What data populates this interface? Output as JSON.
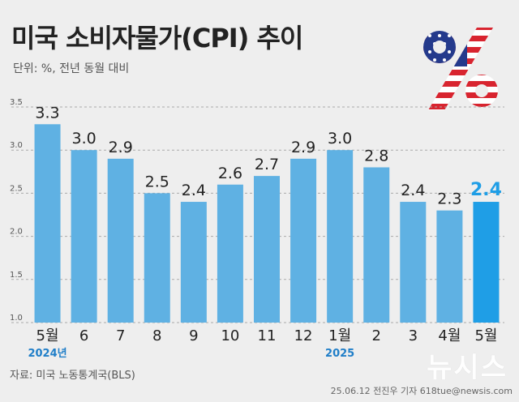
{
  "title": "미국 소비자물가(CPI) 추이",
  "unit": "단위: %, 전년 동월 대비",
  "source": "자료: 미국 노동통계국(BLS)",
  "credit": "25.06.12 전진우 기자 618tue@newsis.com",
  "watermark": "뉴시스",
  "logo": {
    "icon": "percent-flag-icon",
    "glyph": "%"
  },
  "colors": {
    "bar": "#5fb1e3",
    "bar_highlight": "#1f9ee6",
    "value_highlight": "#1f9ee6",
    "grid": "#aaaaaa"
  },
  "chart_data": {
    "type": "bar",
    "title": "미국 소비자물가(CPI) 추이",
    "ylabel": "",
    "xlabel": "",
    "categories": [
      "5월",
      "6",
      "7",
      "8",
      "9",
      "10",
      "11",
      "12",
      "1월",
      "2",
      "3",
      "4월",
      "5월"
    ],
    "values": [
      3.3,
      3.0,
      2.9,
      2.5,
      2.4,
      2.6,
      2.7,
      2.9,
      3.0,
      2.8,
      2.4,
      2.3,
      2.4
    ],
    "value_labels": [
      "3.3",
      "3.0",
      "2.9",
      "2.5",
      "2.4",
      "2.6",
      "2.7",
      "2.9",
      "3.0",
      "2.8",
      "2.4",
      "2.3",
      "2.4"
    ],
    "highlight_index": 12,
    "year_labels": [
      {
        "index": 0,
        "label": "2024년"
      },
      {
        "index": 8,
        "label": "2025"
      }
    ],
    "ylim": [
      1.0,
      3.5
    ],
    "yticks": [
      "1.0",
      "1.5",
      "2.0",
      "2.5",
      "3.0",
      "3.5"
    ],
    "ytick_values": [
      1.0,
      1.5,
      2.0,
      2.5,
      3.0,
      3.5
    ],
    "grid": true,
    "legend": "none"
  }
}
